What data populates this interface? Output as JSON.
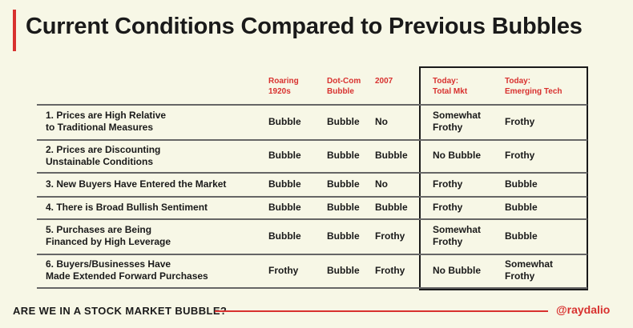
{
  "title": "Current Conditions Compared to Previous Bubbles",
  "columns": [
    "Roaring\n1920s",
    "Dot-Com\nBubble",
    "2007",
    "Today:\nTotal Mkt",
    "Today:\nEmerging Tech"
  ],
  "rows": [
    {
      "label": "1. Prices are High Relative\n    to Traditional Measures",
      "values": [
        "Bubble",
        "Bubble",
        "No",
        "Somewhat\nFrothy",
        "Frothy"
      ]
    },
    {
      "label": "2. Prices are Discounting\n    Unstainable Conditions",
      "values": [
        "Bubble",
        "Bubble",
        "Bubble",
        "No Bubble",
        "Frothy"
      ]
    },
    {
      "label": "3. New Buyers Have Entered the Market",
      "values": [
        "Bubble",
        "Bubble",
        "No",
        "Frothy",
        "Bubble"
      ]
    },
    {
      "label": "4. There is Broad Bullish Sentiment",
      "values": [
        "Bubble",
        "Bubble",
        "Bubble",
        "Frothy",
        "Bubble"
      ]
    },
    {
      "label": "5. Purchases are Being\n    Financed by High Leverage",
      "values": [
        "Bubble",
        "Bubble",
        "Frothy",
        "Somewhat\nFrothy",
        "Bubble"
      ]
    },
    {
      "label": "6. Buyers/Businesses Have\n    Made Extended Forward Purchases",
      "values": [
        "Frothy",
        "Bubble",
        "Frothy",
        "No Bubble",
        "Somewhat\nFrothy"
      ]
    }
  ],
  "footer": {
    "text": "ARE WE IN A STOCK MARKET BUBBLE?",
    "handle": "@raydalio"
  },
  "colors": {
    "accent": "#d8312f",
    "background": "#f7f7e6",
    "text": "#1a1a1a"
  }
}
